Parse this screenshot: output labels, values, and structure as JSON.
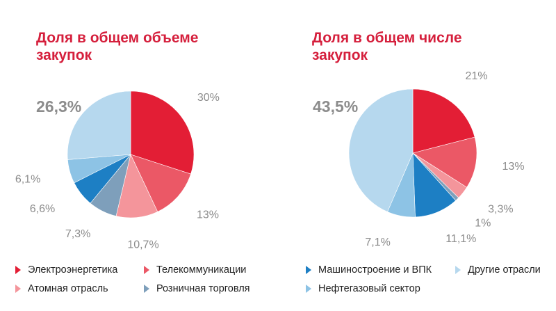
{
  "chart_data": [
    {
      "type": "pie",
      "title": "Доля в общем объеме\nзакупок",
      "slices": [
        {
          "category": "Электроэнергетика",
          "value": 30,
          "label": "30%",
          "color": "#e31e35"
        },
        {
          "category": "Телекоммуникации",
          "value": 13,
          "label": "13%",
          "color": "#eb5866"
        },
        {
          "category": "Атомная отрасль",
          "value": 10.7,
          "label": "10,7%",
          "color": "#f4959b"
        },
        {
          "category": "Розничная торговля",
          "value": 7.3,
          "label": "7,3%",
          "color": "#7e9fbb"
        },
        {
          "category": "Машиностроение и ВПК",
          "value": 6.6,
          "label": "6,6%",
          "color": "#1d7fc4"
        },
        {
          "category": "Нефтегазовый сектор",
          "value": 6.1,
          "label": "6,1%",
          "color": "#8dc3e5"
        },
        {
          "category": "Другие отрасли",
          "value": 26.3,
          "label": "26,3%",
          "color": "#b6d8ee"
        }
      ]
    },
    {
      "type": "pie",
      "title": "Доля в общем числе\nзакупок",
      "slices": [
        {
          "category": "Электроэнергетика",
          "value": 21,
          "label": "21%",
          "color": "#e31e35"
        },
        {
          "category": "Телекоммуникации",
          "value": 13,
          "label": "13%",
          "color": "#eb5866"
        },
        {
          "category": "Атомная отрасль",
          "value": 3.3,
          "label": "3,3%",
          "color": "#f4959b"
        },
        {
          "category": "Розничная торговля",
          "value": 1,
          "label": "1%",
          "color": "#7e9fbb"
        },
        {
          "category": "Машиностроение и ВПК",
          "value": 11.1,
          "label": "11,1%",
          "color": "#1d7fc4"
        },
        {
          "category": "Нефтегазовый сектор",
          "value": 7.1,
          "label": "7,1%",
          "color": "#8dc3e5"
        },
        {
          "category": "Другие отрасли",
          "value": 43.5,
          "label": "43,5%",
          "color": "#b6d8ee"
        }
      ]
    }
  ],
  "legend": [
    {
      "label": "Электроэнергетика",
      "color": "#e31e35"
    },
    {
      "label": "Телекоммуникации",
      "color": "#eb5866"
    },
    {
      "label": "Машиностроение и ВПК",
      "color": "#1d7fc4"
    },
    {
      "label": "Другие отрасли",
      "color": "#b6d8ee"
    },
    {
      "label": "Атомная отрасль",
      "color": "#f4959b"
    },
    {
      "label": "Розничная торговля",
      "color": "#7e9fbb"
    },
    {
      "label": "Нефтегазовый сектор",
      "color": "#8dc3e5"
    }
  ]
}
